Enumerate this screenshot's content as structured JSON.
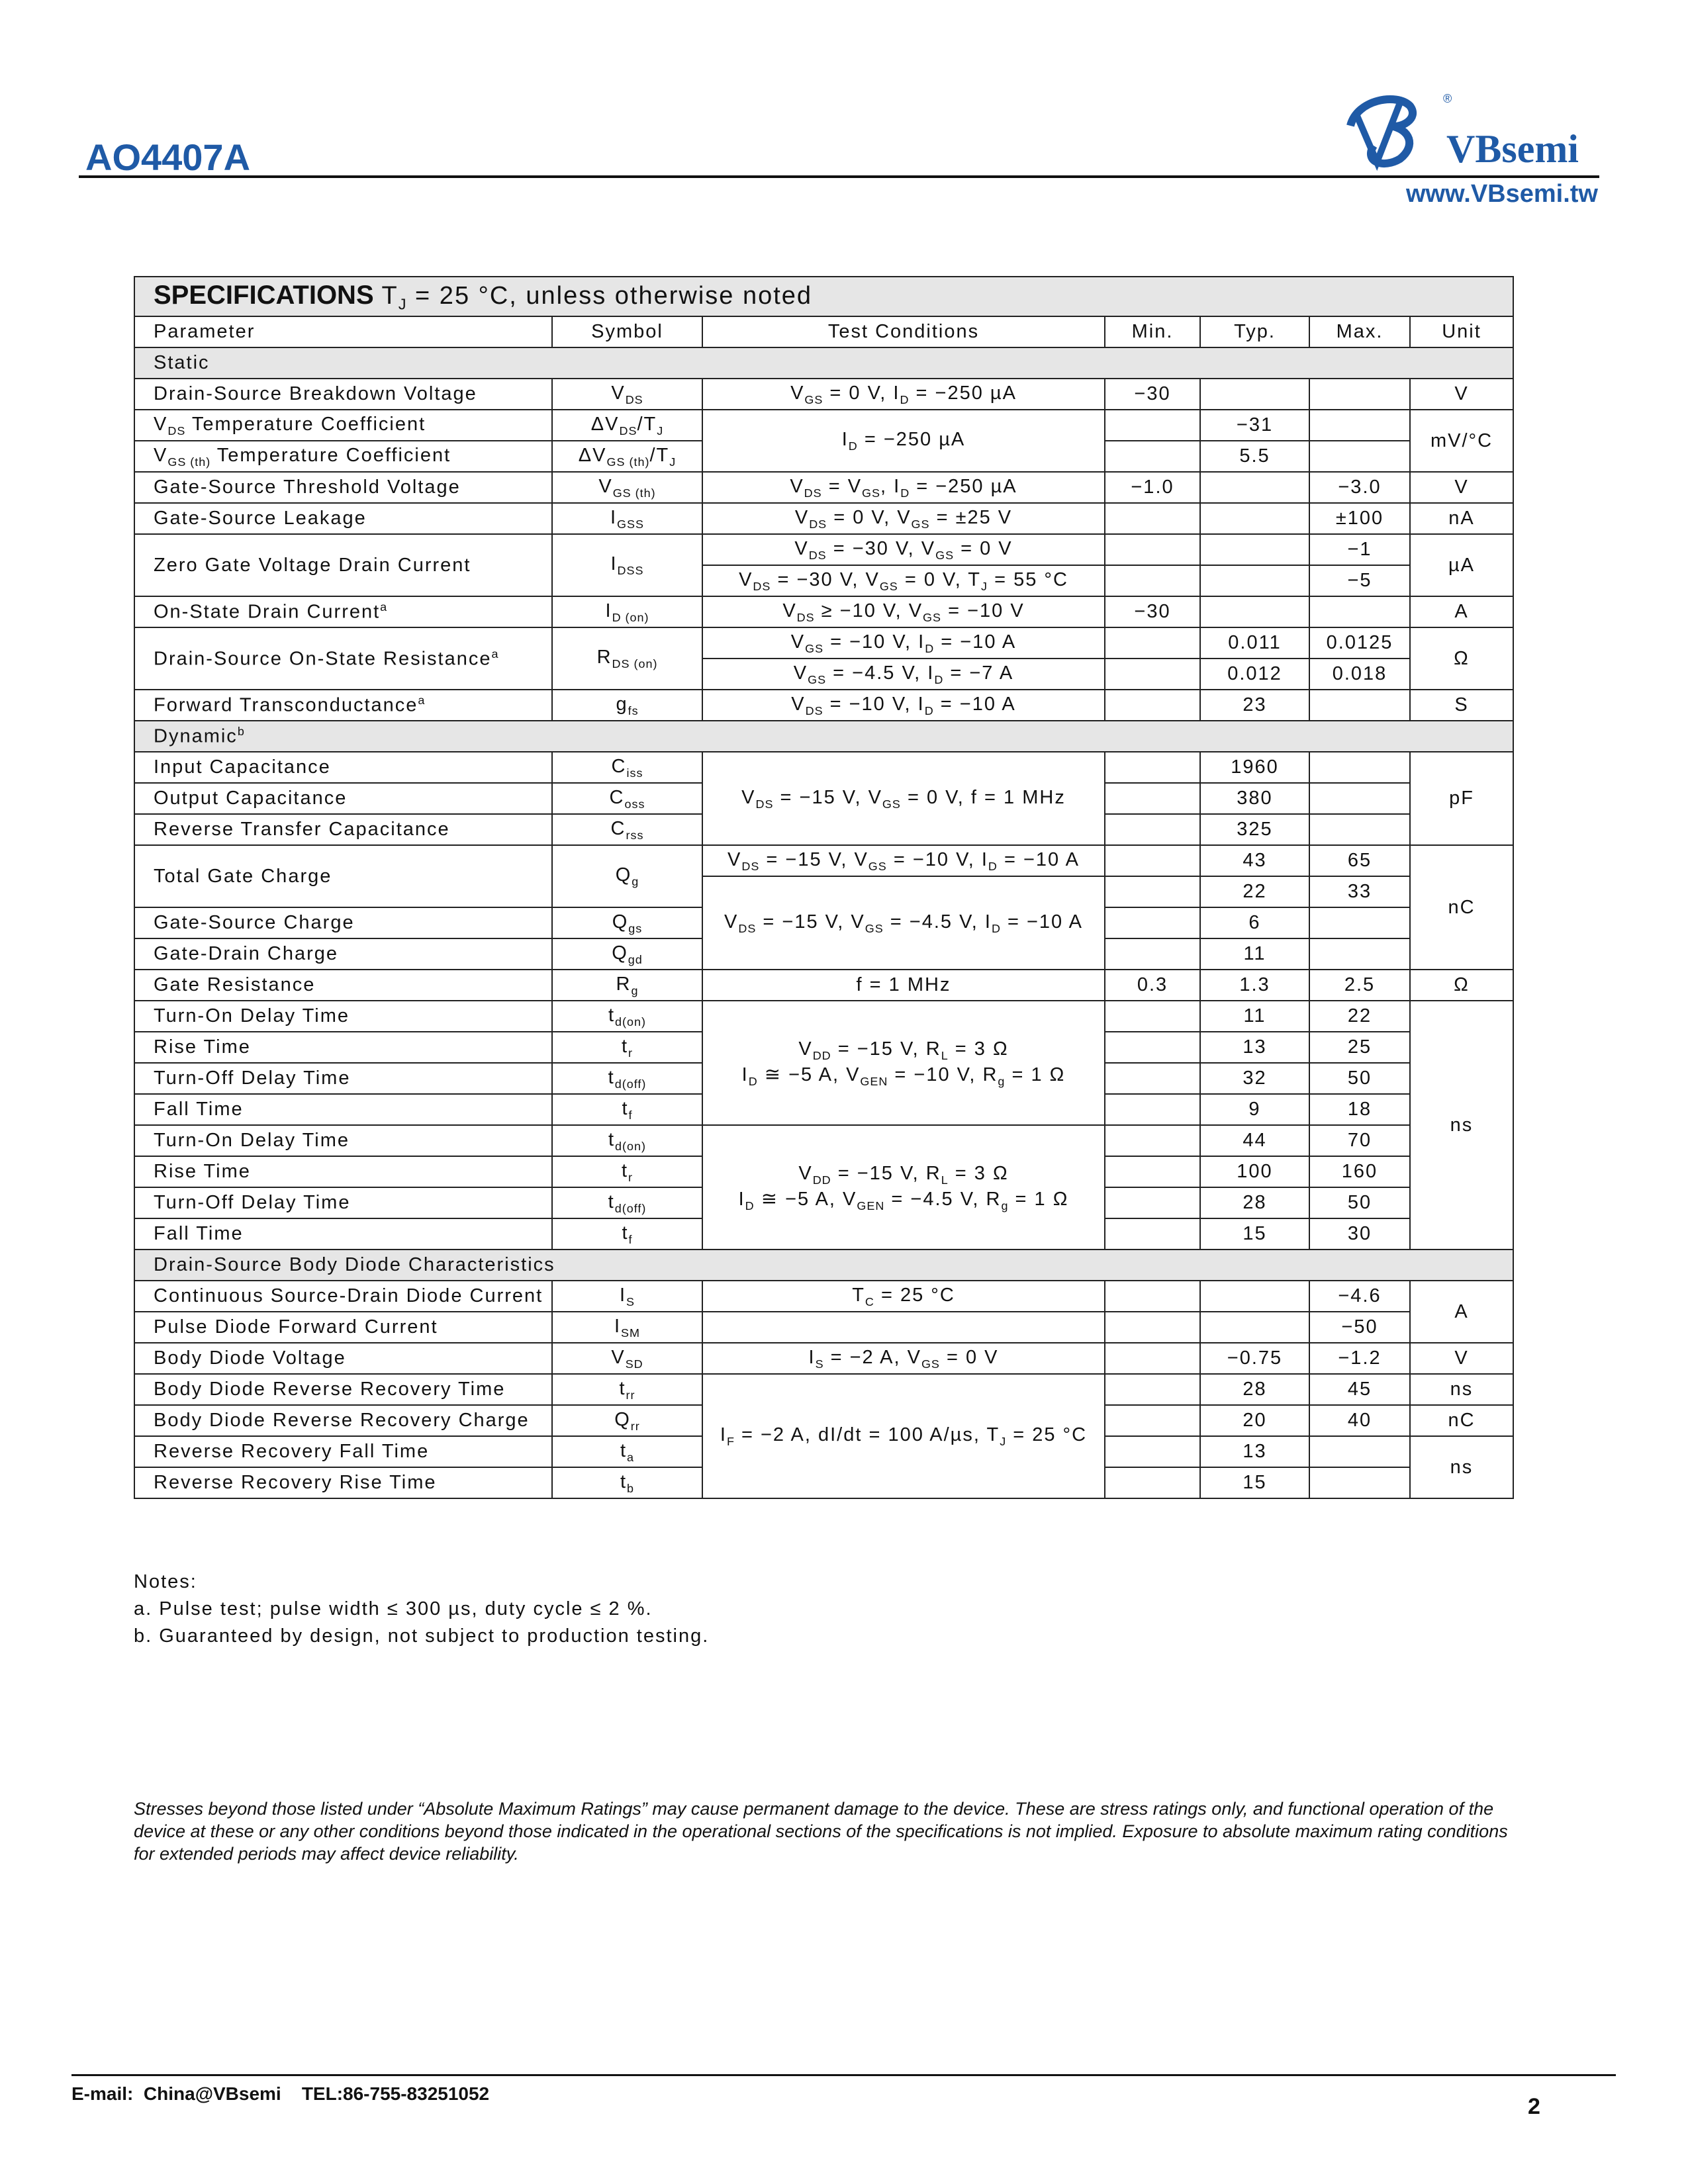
{
  "header": {
    "part_number": "AO4407A",
    "brand": "VBsemi",
    "website": "www.VBsemi.tw",
    "brand_color": "#1f5aa6"
  },
  "spec": {
    "title": "SPECIFICATIONS",
    "condition": "T_{J} = 25 °C, unless otherwise noted"
  },
  "columns": [
    "Parameter",
    "Symbol",
    "Test Conditions",
    "Min.",
    "Typ.",
    "Max.",
    "Unit"
  ],
  "sections": [
    {
      "title": "Static",
      "rows": [
        [
          "Drain-Source Breakdown Voltage",
          "V_{DS}",
          "V_{GS} = 0 V, I_{D} = −250 µA",
          "−30",
          "",
          "",
          "V"
        ],
        [
          "V_{DS} Temperature Coefficient",
          "ΔV_{DS}/T_{J}",
          "I_{D} = −250 µA",
          "",
          "−31",
          "",
          "mV/°C"
        ],
        [
          "V_{GS (th)} Temperature Coefficient",
          "ΔV_{GS (th)}/T_{J}",
          "I_{D} = −250 µA",
          "",
          "5.5",
          "",
          "mV/°C"
        ],
        [
          "Gate-Source Threshold Voltage",
          "V_{GS (th)}",
          "V_{DS} = V_{GS}, I_{D} = −250 µA",
          "−1.0",
          "",
          "−3.0",
          "V"
        ],
        [
          "Gate-Source Leakage",
          "I_{GSS}",
          "V_{DS} = 0 V, V_{GS} = ±25 V",
          "",
          "",
          "±100",
          "nA"
        ],
        [
          "Zero Gate Voltage Drain Current",
          "I_{DSS}",
          "V_{DS} = −30 V, V_{GS} = 0 V",
          "",
          "",
          "−1",
          "µA"
        ],
        [
          "Zero Gate Voltage Drain Current",
          "I_{DSS}",
          "V_{DS} = −30 V, V_{GS} = 0 V, T_{J} = 55 °C",
          "",
          "",
          "−5",
          "µA"
        ],
        [
          "On-State Drain Current^{a}",
          "I_{D (on)}",
          "V_{DS} ≥ −10 V, V_{GS} = −10 V",
          "−30",
          "",
          "",
          "A"
        ],
        [
          "Drain-Source On-State Resistance^{a}",
          "R_{DS (on)}",
          "V_{GS} = −10 V, I_{D} = −10 A",
          "",
          "0.011",
          "0.0125",
          "Ω"
        ],
        [
          "Drain-Source On-State Resistance^{a}",
          "R_{DS (on)}",
          "V_{GS} = −4.5 V, I_{D} = −7 A",
          "",
          "0.012",
          "0.018",
          "Ω"
        ],
        [
          "Forward Transconductance^{a}",
          "g_{fs}",
          "V_{DS} = −10 V, I_{D} = −10 A",
          "",
          "23",
          "",
          "S"
        ]
      ]
    },
    {
      "title": "Dynamic^{b}",
      "rows": [
        [
          "Input Capacitance",
          "C_{iss}",
          "V_{DS} = −15 V, V_{GS} = 0 V, f = 1 MHz",
          "",
          "1960",
          "",
          "pF"
        ],
        [
          "Output Capacitance",
          "C_{oss}",
          "V_{DS} = −15 V, V_{GS} = 0 V, f = 1 MHz",
          "",
          "380",
          "",
          "pF"
        ],
        [
          "Reverse Transfer Capacitance",
          "C_{rss}",
          "V_{DS} = −15 V, V_{GS} = 0 V, f = 1 MHz",
          "",
          "325",
          "",
          "pF"
        ],
        [
          "Total Gate Charge",
          "Q_{g}",
          "V_{DS} = −15 V, V_{GS} = −10 V, I_{D} = −10 A",
          "",
          "43",
          "65",
          "nC"
        ],
        [
          "Total Gate Charge",
          "Q_{g}",
          "V_{DS} = −15 V, V_{GS} = −4.5 V, I_{D} = −10 A",
          "",
          "22",
          "33",
          "nC"
        ],
        [
          "Gate-Source Charge",
          "Q_{gs}",
          "V_{DS} = −15 V, V_{GS} = −4.5 V, I_{D} = −10 A",
          "",
          "6",
          "",
          "nC"
        ],
        [
          "Gate-Drain Charge",
          "Q_{gd}",
          "V_{DS} = −15 V, V_{GS} = −4.5 V, I_{D} = −10 A",
          "",
          "11",
          "",
          "nC"
        ],
        [
          "Gate Resistance",
          "R_{g}",
          "f = 1 MHz",
          "0.3",
          "1.3",
          "2.5",
          "Ω"
        ],
        [
          "Turn-On Delay Time",
          "t_{d(on)}",
          "V_{DD} = −15 V, R_{L} = 3 Ω\nI_{D} ≅ −5 A, V_{GEN} = −10 V, R_{g} = 1 Ω",
          "",
          "11",
          "22",
          "ns"
        ],
        [
          "Rise Time",
          "t_{r}",
          "V_{DD} = −15 V, R_{L} = 3 Ω\nI_{D} ≅ −5 A, V_{GEN} = −10 V, R_{g} = 1 Ω",
          "",
          "13",
          "25",
          "ns"
        ],
        [
          "Turn-Off Delay Time",
          "t_{d(off)}",
          "V_{DD} = −15 V, R_{L} = 3 Ω\nI_{D} ≅ −5 A, V_{GEN} = −10 V, R_{g} = 1 Ω",
          "",
          "32",
          "50",
          "ns"
        ],
        [
          "Fall Time",
          "t_{f}",
          "V_{DD} = −15 V, R_{L} = 3 Ω\nI_{D} ≅ −5 A, V_{GEN} = −10 V, R_{g} = 1 Ω",
          "",
          "9",
          "18",
          "ns"
        ],
        [
          "Turn-On Delay Time",
          "t_{d(on)}",
          "V_{DD} = −15 V, R_{L} = 3 Ω\nI_{D} ≅ −5 A, V_{GEN} = −4.5 V, R_{g} = 1 Ω",
          "",
          "44",
          "70",
          "ns"
        ],
        [
          "Rise Time",
          "t_{r}",
          "V_{DD} = −15 V, R_{L} = 3 Ω\nI_{D} ≅ −5 A, V_{GEN} = −4.5 V, R_{g} = 1 Ω",
          "",
          "100",
          "160",
          "ns"
        ],
        [
          "Turn-Off Delay Time",
          "t_{d(off)}",
          "V_{DD} = −15 V, R_{L} = 3 Ω\nI_{D} ≅ −5 A, V_{GEN} = −4.5 V, R_{g} = 1 Ω",
          "",
          "28",
          "50",
          "ns"
        ],
        [
          "Fall Time",
          "t_{f}",
          "V_{DD} = −15 V, R_{L} = 3 Ω\nI_{D} ≅ −5 A, V_{GEN} = −4.5 V, R_{g} = 1 Ω",
          "",
          "15",
          "30",
          "ns"
        ]
      ]
    },
    {
      "title": "Drain-Source Body Diode Characteristics",
      "rows": [
        [
          "Continuous Source-Drain Diode Current",
          "I_{S}",
          "T_{C} = 25 °C",
          "",
          "",
          "−4.6",
          "A"
        ],
        [
          "Pulse Diode Forward Current",
          "I_{SM}",
          "",
          "",
          "",
          "−50",
          "A"
        ],
        [
          "Body Diode Voltage",
          "V_{SD}",
          "I_{S} = −2 A, V_{GS} = 0 V",
          "",
          "−0.75",
          "−1.2",
          "V"
        ],
        [
          "Body Diode Reverse Recovery Time",
          "t_{rr}",
          "I_{F} = −2 A, dI/dt = 100 A/µs, T_{J} = 25 °C",
          "",
          "28",
          "45",
          "ns"
        ],
        [
          "Body Diode Reverse Recovery Charge",
          "Q_{rr}",
          "I_{F} = −2 A, dI/dt = 100 A/µs, T_{J} = 25 °C",
          "",
          "20",
          "40",
          "nC"
        ],
        [
          "Reverse Recovery Fall Time",
          "t_{a}",
          "I_{F} = −2 A, dI/dt = 100 A/µs, T_{J} = 25 °C",
          "",
          "13",
          "",
          "ns"
        ],
        [
          "Reverse Recovery Rise Time",
          "t_{b}",
          "I_{F} = −2 A, dI/dt = 100 A/µs, T_{J} = 25 °C",
          "",
          "15",
          "",
          "ns"
        ]
      ]
    }
  ],
  "notes": {
    "title": "Notes:",
    "items": [
      "a. Pulse test; pulse width ≤ 300 µs, duty cycle ≤ 2 %.",
      "b. Guaranteed by design, not subject to production testing."
    ]
  },
  "disclaimer": "Stresses beyond those listed under “Absolute Maximum Ratings” may cause permanent damage to the device. These are stress ratings only, and functional operation of the device at these or any other conditions beyond those indicated in the operational sections of the specifications is not implied. Exposure to absolute maximum rating conditions for extended periods may affect device reliability.",
  "footer": {
    "contact": "E-mail:  China@VBsemi    TEL:86-755-83251052",
    "page": "2"
  }
}
